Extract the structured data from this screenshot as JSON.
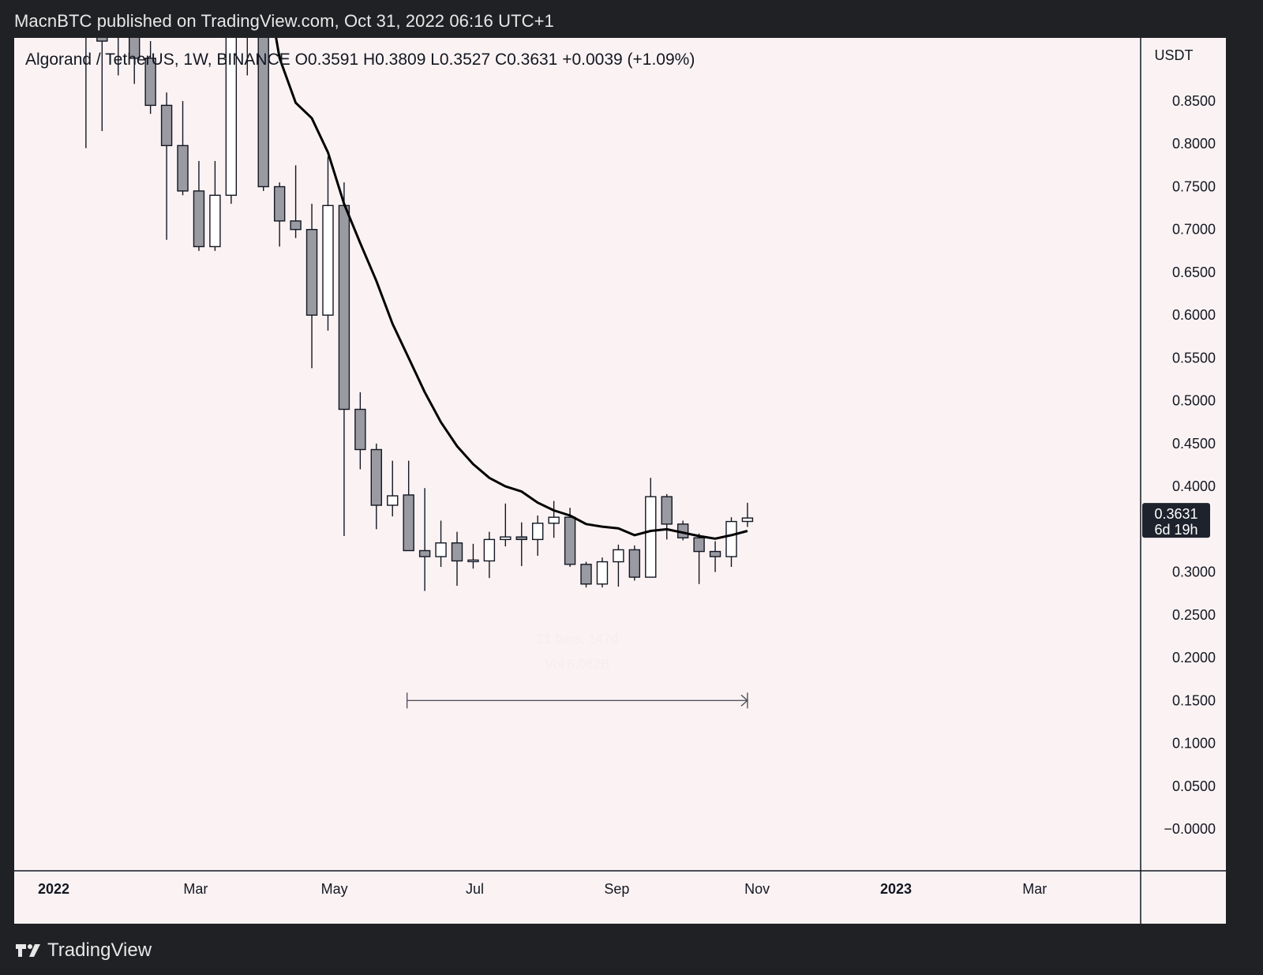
{
  "header": {
    "published_text": "MacnBTC published on TradingView.com, Oct 31, 2022 06:16 UTC+1"
  },
  "footer": {
    "brand": "TradingView"
  },
  "chart_data": {
    "type": "candlestick",
    "symbol_legend": {
      "title": "Algorand / TetherUS, 1W, BINANCE",
      "open": "O0.3591",
      "high": "H0.3809",
      "low": "L0.3527",
      "close": "C0.3631",
      "change": "+0.0039 (+1.09%)"
    },
    "y_axis": {
      "unit": "USDT",
      "ticks": [
        "0.8500",
        "0.8000",
        "0.7500",
        "0.7000",
        "0.6500",
        "0.6000",
        "0.5500",
        "0.5000",
        "0.4500",
        "0.4000",
        "0.3000",
        "0.2500",
        "0.2000",
        "0.1500",
        "0.1000",
        "0.0500",
        "−0.0000"
      ],
      "tick_values": [
        0.85,
        0.8,
        0.75,
        0.7,
        0.65,
        0.6,
        0.55,
        0.5,
        0.45,
        0.4,
        0.3,
        0.25,
        0.2,
        0.15,
        0.1,
        0.05,
        0.0
      ]
    },
    "x_axis": {
      "labels": [
        {
          "text": "2022",
          "bold": true,
          "week": 0
        },
        {
          "text": "Mar",
          "bold": false,
          "week": 8.8
        },
        {
          "text": "May",
          "bold": false,
          "week": 17.4
        },
        {
          "text": "Jul",
          "bold": false,
          "week": 26.1
        },
        {
          "text": "Sep",
          "bold": false,
          "week": 34.9
        },
        {
          "text": "Nov",
          "bold": false,
          "week": 43.6
        },
        {
          "text": "2023",
          "bold": true,
          "week": 52.2
        },
        {
          "text": "Mar",
          "bold": false,
          "week": 60.8
        }
      ]
    },
    "price_label": {
      "price": "0.3631",
      "countdown": "6d 19h",
      "value": 0.3631
    },
    "candles": [
      {
        "w": 2,
        "o": 0.98,
        "h": 1.02,
        "l": 0.795,
        "c": 0.93
      },
      {
        "w": 3,
        "o": 0.95,
        "h": 1.0,
        "l": 0.815,
        "c": 0.92
      },
      {
        "w": 4,
        "o": 0.93,
        "h": 1.05,
        "l": 0.88,
        "c": 0.96
      },
      {
        "w": 5,
        "o": 0.94,
        "h": 0.98,
        "l": 0.87,
        "c": 0.9
      },
      {
        "w": 6,
        "o": 0.9,
        "h": 0.92,
        "l": 0.835,
        "c": 0.845
      },
      {
        "w": 7,
        "o": 0.845,
        "h": 0.86,
        "l": 0.688,
        "c": 0.798
      },
      {
        "w": 8,
        "o": 0.798,
        "h": 0.85,
        "l": 0.74,
        "c": 0.745
      },
      {
        "w": 9,
        "o": 0.745,
        "h": 0.78,
        "l": 0.675,
        "c": 0.68
      },
      {
        "w": 10,
        "o": 0.68,
        "h": 0.78,
        "l": 0.675,
        "c": 0.74
      },
      {
        "w": 11,
        "o": 0.74,
        "h": 1.0,
        "l": 0.73,
        "c": 0.96
      },
      {
        "w": 12,
        "o": 0.96,
        "h": 1.0,
        "l": 0.88,
        "c": 0.96
      },
      {
        "w": 13,
        "o": 0.96,
        "h": 1.05,
        "l": 0.745,
        "c": 0.75
      },
      {
        "w": 14,
        "o": 0.75,
        "h": 0.755,
        "l": 0.68,
        "c": 0.71
      },
      {
        "w": 15,
        "o": 0.71,
        "h": 0.775,
        "l": 0.69,
        "c": 0.7
      },
      {
        "w": 16,
        "o": 0.7,
        "h": 0.73,
        "l": 0.538,
        "c": 0.6
      },
      {
        "w": 17,
        "o": 0.6,
        "h": 0.785,
        "l": 0.582,
        "c": 0.728
      },
      {
        "w": 18,
        "o": 0.728,
        "h": 0.755,
        "l": 0.342,
        "c": 0.49
      },
      {
        "w": 19,
        "o": 0.49,
        "h": 0.51,
        "l": 0.42,
        "c": 0.443
      },
      {
        "w": 20,
        "o": 0.443,
        "h": 0.45,
        "l": 0.35,
        "c": 0.378
      },
      {
        "w": 21,
        "o": 0.378,
        "h": 0.43,
        "l": 0.365,
        "c": 0.389
      },
      {
        "w": 22,
        "o": 0.39,
        "h": 0.43,
        "l": 0.33,
        "c": 0.325
      },
      {
        "w": 23,
        "o": 0.325,
        "h": 0.398,
        "l": 0.278,
        "c": 0.318
      },
      {
        "w": 24,
        "o": 0.318,
        "h": 0.36,
        "l": 0.306,
        "c": 0.334
      },
      {
        "w": 25,
        "o": 0.334,
        "h": 0.347,
        "l": 0.284,
        "c": 0.313
      },
      {
        "w": 26,
        "o": 0.313,
        "h": 0.333,
        "l": 0.304,
        "c": 0.314
      },
      {
        "w": 27,
        "o": 0.313,
        "h": 0.347,
        "l": 0.293,
        "c": 0.338
      },
      {
        "w": 28,
        "o": 0.338,
        "h": 0.38,
        "l": 0.33,
        "c": 0.341
      },
      {
        "w": 29,
        "o": 0.341,
        "h": 0.358,
        "l": 0.307,
        "c": 0.338
      },
      {
        "w": 30,
        "o": 0.338,
        "h": 0.366,
        "l": 0.319,
        "c": 0.357
      },
      {
        "w": 31,
        "o": 0.357,
        "h": 0.383,
        "l": 0.34,
        "c": 0.364
      },
      {
        "w": 32,
        "o": 0.364,
        "h": 0.375,
        "l": 0.306,
        "c": 0.309
      },
      {
        "w": 33,
        "o": 0.309,
        "h": 0.312,
        "l": 0.282,
        "c": 0.286
      },
      {
        "w": 34,
        "o": 0.286,
        "h": 0.317,
        "l": 0.282,
        "c": 0.312
      },
      {
        "w": 35,
        "o": 0.312,
        "h": 0.332,
        "l": 0.283,
        "c": 0.326
      },
      {
        "w": 36,
        "o": 0.326,
        "h": 0.331,
        "l": 0.29,
        "c": 0.294
      },
      {
        "w": 37,
        "o": 0.294,
        "h": 0.41,
        "l": 0.294,
        "c": 0.388
      },
      {
        "w": 38,
        "o": 0.388,
        "h": 0.391,
        "l": 0.338,
        "c": 0.356
      },
      {
        "w": 39,
        "o": 0.356,
        "h": 0.36,
        "l": 0.337,
        "c": 0.34
      },
      {
        "w": 40,
        "o": 0.34,
        "h": 0.345,
        "l": 0.286,
        "c": 0.324
      },
      {
        "w": 41,
        "o": 0.324,
        "h": 0.336,
        "l": 0.3,
        "c": 0.318
      },
      {
        "w": 42,
        "o": 0.318,
        "h": 0.364,
        "l": 0.306,
        "c": 0.359
      },
      {
        "w": 43,
        "o": 0.3591,
        "h": 0.3809,
        "l": 0.3527,
        "c": 0.3631
      }
    ],
    "moving_average": [
      {
        "w": 12.9,
        "v": 1.02
      },
      {
        "w": 14,
        "v": 0.9
      },
      {
        "w": 15,
        "v": 0.848
      },
      {
        "w": 16,
        "v": 0.83
      },
      {
        "w": 17,
        "v": 0.79
      },
      {
        "w": 18,
        "v": 0.73
      },
      {
        "w": 19,
        "v": 0.684
      },
      {
        "w": 20,
        "v": 0.64
      },
      {
        "w": 21,
        "v": 0.59
      },
      {
        "w": 22,
        "v": 0.55
      },
      {
        "w": 23,
        "v": 0.51
      },
      {
        "w": 24,
        "v": 0.475
      },
      {
        "w": 25,
        "v": 0.447
      },
      {
        "w": 26,
        "v": 0.426
      },
      {
        "w": 27,
        "v": 0.41
      },
      {
        "w": 28,
        "v": 0.4
      },
      {
        "w": 29,
        "v": 0.394
      },
      {
        "w": 30,
        "v": 0.381
      },
      {
        "w": 31,
        "v": 0.372
      },
      {
        "w": 32,
        "v": 0.366
      },
      {
        "w": 33,
        "v": 0.356
      },
      {
        "w": 34,
        "v": 0.353
      },
      {
        "w": 35,
        "v": 0.351
      },
      {
        "w": 36,
        "v": 0.343
      },
      {
        "w": 37,
        "v": 0.348
      },
      {
        "w": 38,
        "v": 0.35
      },
      {
        "w": 39,
        "v": 0.346
      },
      {
        "w": 40,
        "v": 0.342
      },
      {
        "w": 41,
        "v": 0.339
      },
      {
        "w": 42,
        "v": 0.343
      },
      {
        "w": 43,
        "v": 0.348
      }
    ],
    "range_measure": {
      "start_week": 21.9,
      "end_week": 43,
      "price": 0.15,
      "bars_text": "21 bars, 147d",
      "vol_text": "Vol 6.082B"
    },
    "colors": {
      "background": "#fbf3f3",
      "frame": "#202124",
      "bear_body": "#9a9aa2",
      "bull_body": "#ffffff",
      "outline": "#131722",
      "ma_line": "#000000",
      "axis_text": "#131722",
      "price_label_bg": "#1e222d",
      "price_label_text": "#ffffff"
    }
  }
}
